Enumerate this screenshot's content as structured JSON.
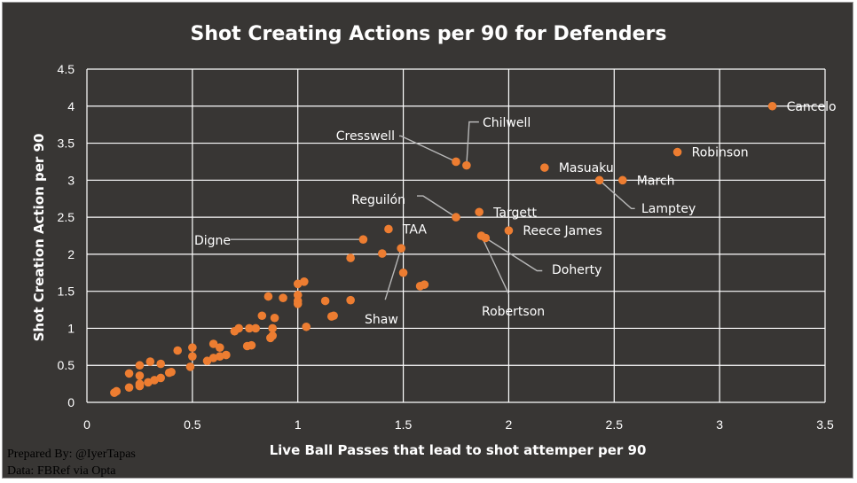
{
  "chart_data": {
    "type": "scatter",
    "title": "Shot Creating Actions per 90 for Defenders",
    "xlabel": "Live Ball Passes that lead to shot attemper per 90",
    "ylabel": "Shot Creation Action per 90",
    "xlim": [
      0,
      3.5
    ],
    "ylim": [
      0,
      4.5
    ],
    "x_ticks": [
      "0",
      "0.5",
      "1",
      "1.5",
      "2",
      "2.5",
      "3",
      "3.5"
    ],
    "y_ticks": [
      "0",
      "0.5",
      "1",
      "1.5",
      "2",
      "2.5",
      "3",
      "3.5",
      "4",
      "4.5"
    ],
    "grid": true,
    "marker_color": "#ED7D31",
    "points": [
      [
        0.13,
        0.13
      ],
      [
        0.14,
        0.15
      ],
      [
        0.2,
        0.2
      ],
      [
        0.2,
        0.39
      ],
      [
        0.25,
        0.22
      ],
      [
        0.25,
        0.25
      ],
      [
        0.25,
        0.36
      ],
      [
        0.25,
        0.5
      ],
      [
        0.29,
        0.27
      ],
      [
        0.3,
        0.55
      ],
      [
        0.32,
        0.3
      ],
      [
        0.35,
        0.33
      ],
      [
        0.35,
        0.52
      ],
      [
        0.39,
        0.4
      ],
      [
        0.4,
        0.41
      ],
      [
        0.43,
        0.7
      ],
      [
        0.49,
        0.48
      ],
      [
        0.5,
        0.62
      ],
      [
        0.5,
        0.74
      ],
      [
        0.57,
        0.56
      ],
      [
        0.6,
        0.6
      ],
      [
        0.6,
        0.79
      ],
      [
        0.63,
        0.62
      ],
      [
        0.63,
        0.74
      ],
      [
        0.66,
        0.64
      ],
      [
        0.7,
        0.96
      ],
      [
        0.72,
        1.0
      ],
      [
        0.76,
        0.76
      ],
      [
        0.77,
        1.0
      ],
      [
        0.78,
        0.77
      ],
      [
        0.8,
        1.0
      ],
      [
        0.83,
        1.17
      ],
      [
        0.86,
        1.43
      ],
      [
        0.87,
        0.87
      ],
      [
        0.88,
        0.9
      ],
      [
        0.88,
        1.0
      ],
      [
        0.89,
        1.14
      ],
      [
        0.93,
        1.41
      ],
      [
        1.0,
        1.33
      ],
      [
        1.0,
        1.37
      ],
      [
        1.0,
        1.45
      ],
      [
        1.0,
        1.6
      ],
      [
        1.03,
        1.63
      ],
      [
        1.04,
        1.02
      ],
      [
        1.13,
        1.37
      ],
      [
        1.16,
        1.16
      ],
      [
        1.17,
        1.17
      ],
      [
        1.25,
        1.38
      ],
      [
        1.25,
        1.95
      ],
      [
        1.4,
        2.01
      ],
      [
        1.5,
        1.75
      ],
      [
        1.58,
        1.57
      ],
      [
        1.6,
        1.59
      ],
      [
        1.31,
        2.2
      ],
      [
        1.43,
        2.34
      ],
      [
        1.49,
        2.08
      ],
      [
        1.75,
        2.5
      ],
      [
        1.75,
        3.25
      ],
      [
        1.8,
        3.2
      ],
      [
        1.86,
        2.57
      ],
      [
        1.87,
        2.25
      ],
      [
        1.89,
        2.22
      ],
      [
        2.0,
        2.32
      ],
      [
        2.17,
        3.17
      ],
      [
        2.43,
        3.0
      ],
      [
        2.54,
        3.0
      ],
      [
        2.8,
        3.38
      ],
      [
        3.25,
        4.0
      ]
    ],
    "annotations": [
      {
        "label": "Cancelo",
        "x": 3.25,
        "y": 4.0
      },
      {
        "label": "Robinson",
        "x": 2.8,
        "y": 3.38
      },
      {
        "label": "Masuaku",
        "x": 2.17,
        "y": 3.17
      },
      {
        "label": "March",
        "x": 2.54,
        "y": 3.0
      },
      {
        "label": "Lamptey",
        "x": 2.43,
        "y": 3.0
      },
      {
        "label": "Chilwell",
        "x": 1.8,
        "y": 3.2
      },
      {
        "label": "Cresswell",
        "x": 1.75,
        "y": 3.25
      },
      {
        "label": "Targett",
        "x": 1.86,
        "y": 2.57
      },
      {
        "label": "Reguilón",
        "x": 1.75,
        "y": 2.5
      },
      {
        "label": "Reece James",
        "x": 2.0,
        "y": 2.32
      },
      {
        "label": "TAA",
        "x": 1.43,
        "y": 2.34
      },
      {
        "label": "Digne",
        "x": 1.31,
        "y": 2.2
      },
      {
        "label": "Doherty",
        "x": 1.89,
        "y": 2.22
      },
      {
        "label": "Robertson",
        "x": 1.87,
        "y": 2.25
      },
      {
        "label": "Shaw",
        "x": 1.49,
        "y": 2.08
      }
    ]
  },
  "credits": {
    "prepared_by": "Prepared By: @IyerTapas",
    "source": "Data: FBRef via Opta"
  }
}
